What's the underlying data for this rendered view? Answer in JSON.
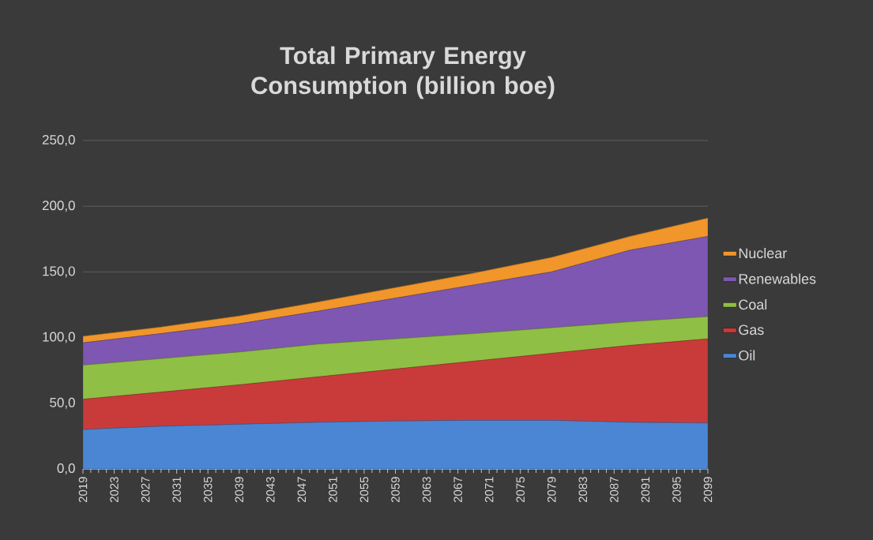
{
  "chart_data": {
    "type": "area",
    "stacked": true,
    "title": "Total Primary Energy Consumption (billion boe)",
    "x": [
      2019,
      2029,
      2039,
      2049,
      2059,
      2069,
      2079,
      2089,
      2099
    ],
    "xlim": [
      2019,
      2099
    ],
    "xticks": [
      2019,
      2023,
      2027,
      2031,
      2035,
      2039,
      2043,
      2047,
      2051,
      2055,
      2059,
      2063,
      2067,
      2071,
      2075,
      2079,
      2083,
      2087,
      2091,
      2095,
      2099
    ],
    "ylim": [
      0,
      250
    ],
    "yticks": [
      {
        "value": 0,
        "label": "0,0"
      },
      {
        "value": 50,
        "label": "50,0"
      },
      {
        "value": 100,
        "label": "100,0"
      },
      {
        "value": 150,
        "label": "150,0"
      },
      {
        "value": 200,
        "label": "200,0"
      },
      {
        "value": 250,
        "label": "250,0"
      }
    ],
    "grid": "y",
    "legend": "right",
    "series": [
      {
        "name": "Oil",
        "color": "#4a86d4",
        "values": [
          30,
          32.5,
          34,
          35.5,
          36.5,
          37,
          37,
          35.5,
          35
        ]
      },
      {
        "name": "Gas",
        "color": "#c93b3b",
        "values": [
          23,
          26,
          30,
          34.5,
          39.5,
          45,
          51,
          58.5,
          64
        ]
      },
      {
        "name": "Coal",
        "color": "#8fbf44",
        "values": [
          26,
          25.5,
          25,
          25,
          23,
          21,
          19.5,
          18,
          17
        ]
      },
      {
        "name": "Renewables",
        "color": "#7e57b2",
        "values": [
          17,
          19,
          21.5,
          25,
          31,
          37,
          42.5,
          54.5,
          61
        ]
      },
      {
        "name": "Nuclear",
        "color": "#f0962a",
        "values": [
          5,
          5,
          6,
          7,
          8,
          9,
          11,
          10.5,
          14
        ]
      }
    ]
  }
}
